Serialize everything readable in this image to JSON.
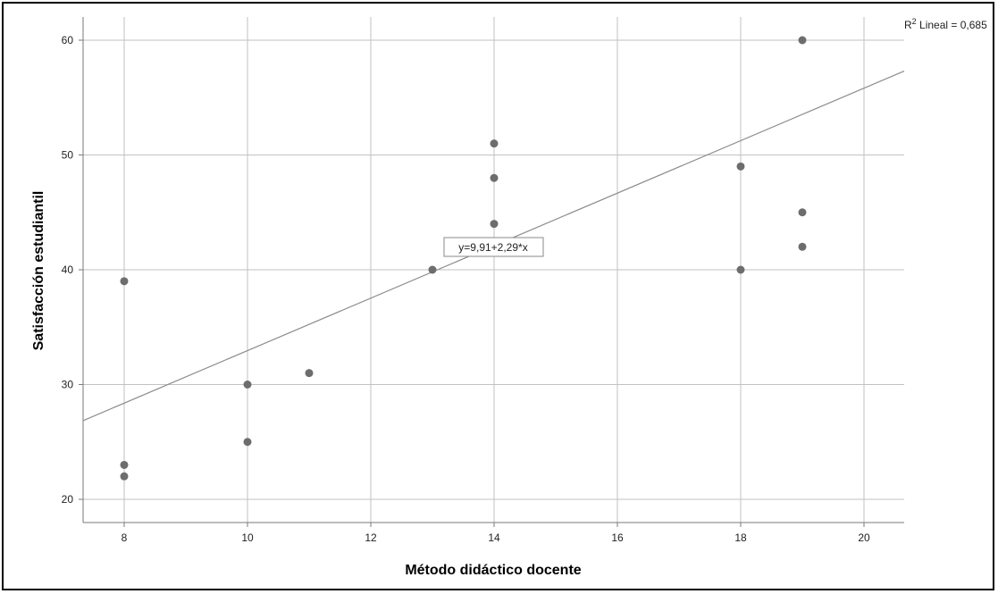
{
  "chart_data": {
    "type": "scatter",
    "xlabel": "Método didáctico docente",
    "ylabel": "Satisfacción estudiantil",
    "xlim": [
      7.4,
      20.7
    ],
    "ylim": [
      18.0,
      62.0
    ],
    "x_ticks": [
      8,
      10,
      12,
      14,
      16,
      18,
      20
    ],
    "y_ticks": [
      20,
      30,
      40,
      50,
      60
    ],
    "grid": true,
    "points": [
      {
        "x": 8,
        "y": 39
      },
      {
        "x": 8,
        "y": 23
      },
      {
        "x": 8,
        "y": 22
      },
      {
        "x": 10,
        "y": 30
      },
      {
        "x": 10,
        "y": 25
      },
      {
        "x": 11,
        "y": 31
      },
      {
        "x": 13,
        "y": 40
      },
      {
        "x": 14,
        "y": 51
      },
      {
        "x": 14,
        "y": 48
      },
      {
        "x": 14,
        "y": 44
      },
      {
        "x": 18,
        "y": 49
      },
      {
        "x": 18,
        "y": 40
      },
      {
        "x": 19,
        "y": 60
      },
      {
        "x": 19,
        "y": 45
      },
      {
        "x": 19,
        "y": 42
      }
    ],
    "fit_line": {
      "intercept": 9.91,
      "slope": 2.29
    },
    "equation_label": "y=9,91+2,29*x",
    "r2_prefix": "R",
    "r2_sup": "2",
    "r2_text": " Lineal = 0,685",
    "colors": {
      "point": "#6d6d6d",
      "grid": "#c2c2c2",
      "line": "#8c8c8c",
      "axis": "#7a7a7a"
    }
  }
}
